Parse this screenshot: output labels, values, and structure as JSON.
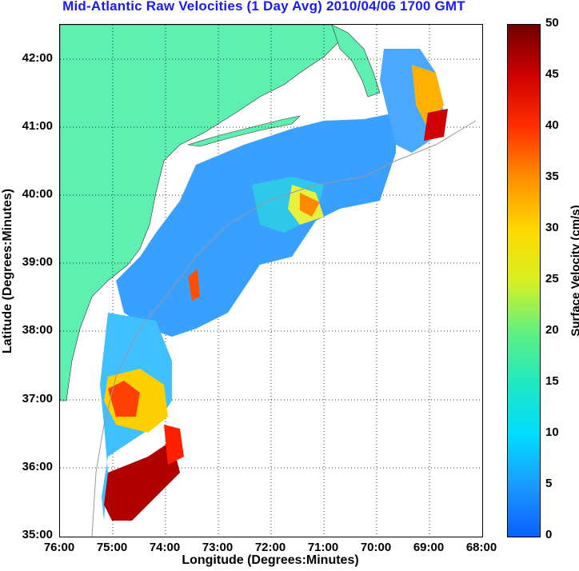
{
  "title": "Mid-Atlantic Raw Velocities (1 Day Avg) 2010/04/06 1700 GMT",
  "xlabel": "Longitude (Degrees:Minutes)",
  "ylabel": "Latitude (Degrees:Minutes)",
  "x_ticks": [
    "76:00",
    "75:00",
    "74:00",
    "73:00",
    "72:00",
    "71:00",
    "70:00",
    "69:00",
    "68:00"
  ],
  "y_ticks": [
    "42:00",
    "41:00",
    "40:00",
    "39:00",
    "38:00",
    "37:00",
    "36:00",
    "35:00"
  ],
  "colorbar": {
    "label": "Surface Velocity (cm/s)",
    "ticks": [
      "50",
      "45",
      "40",
      "35",
      "30",
      "25",
      "20",
      "15",
      "10",
      "5",
      "0"
    ]
  },
  "colors": {
    "land": "#5ef0b0",
    "title": "#1a1aff",
    "coast": "#999999"
  }
}
